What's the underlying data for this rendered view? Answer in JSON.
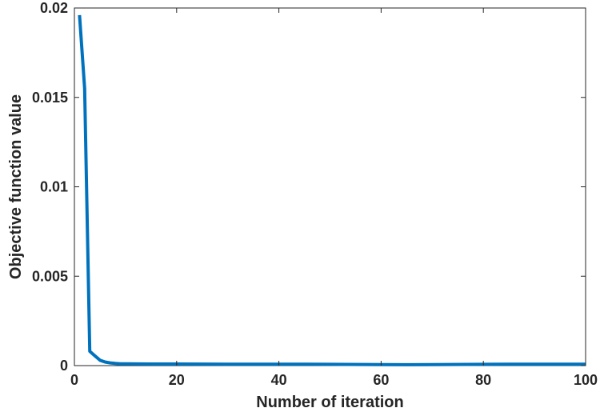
{
  "chart_data": {
    "type": "line",
    "xlabel": "Number of iteration",
    "ylabel": "Objective function value",
    "xlim": [
      0,
      100
    ],
    "ylim": [
      0,
      0.02
    ],
    "x_ticks": [
      0,
      20,
      40,
      60,
      80,
      100
    ],
    "x_tick_labels": [
      "0",
      "20",
      "40",
      "60",
      "80",
      "100"
    ],
    "y_ticks": [
      0,
      0.005,
      0.01,
      0.015,
      0.02
    ],
    "y_tick_labels": [
      "0",
      "0.005",
      "0.01",
      "0.015",
      "0.02"
    ],
    "grid": false,
    "box": true,
    "series": [
      {
        "color": "#0072BD",
        "x": [
          1,
          2,
          3,
          4,
          5,
          6,
          7,
          8,
          9,
          10,
          15,
          20,
          30,
          40,
          50,
          60,
          65,
          70,
          80,
          90,
          100
        ],
        "y": [
          0.0196,
          0.0155,
          0.0008,
          0.00055,
          0.0003,
          0.0002,
          0.00015,
          0.00012,
          0.0001,
          0.0001,
          9e-05,
          9e-05,
          8e-05,
          8e-05,
          7e-05,
          6e-05,
          5e-05,
          6e-05,
          7e-05,
          8e-05,
          8e-05
        ]
      }
    ]
  }
}
